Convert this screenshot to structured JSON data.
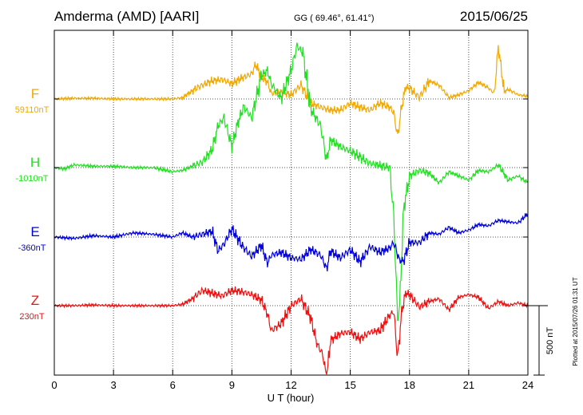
{
  "header": {
    "station": "Amderma (AMD)  [AARI]",
    "coords": "GG ( 69.46°,  61.41°)",
    "date": "2015/06/25"
  },
  "footer": {
    "plotted": "Plotted at 2015/07/26 01:31  UT"
  },
  "scale_bar_label": "500 nT",
  "chart_data": {
    "type": "line",
    "xlabel": "U T (hour)",
    "xlim": [
      0,
      24
    ],
    "xticks": [
      "0",
      "3",
      "6",
      "9",
      "12",
      "15",
      "18",
      "21",
      "24"
    ],
    "scale_bar_nT": 500,
    "grid": true,
    "series": [
      {
        "name": "F",
        "baseline_label": "59110nT",
        "color": "#f2a900",
        "x": [
          0,
          1,
          2,
          3,
          4,
          5,
          6,
          6.5,
          7,
          7.5,
          8,
          8.5,
          9,
          9.5,
          10,
          10.2,
          10.5,
          10.8,
          11,
          11.5,
          12,
          12.5,
          13,
          13.5,
          14,
          14.5,
          15,
          15.5,
          16,
          16.5,
          17,
          17.2,
          17.4,
          17.6,
          17.8,
          18,
          18.5,
          19,
          19.5,
          20,
          20.5,
          21,
          21.5,
          22,
          22.3,
          22.5,
          22.8,
          23,
          23.5,
          24
        ],
        "y": [
          0,
          5,
          5,
          0,
          0,
          0,
          0,
          10,
          60,
          100,
          130,
          140,
          110,
          150,
          180,
          250,
          160,
          120,
          40,
          50,
          30,
          100,
          -30,
          -60,
          -80,
          -80,
          -30,
          -60,
          -80,
          -30,
          -60,
          -100,
          -270,
          -60,
          80,
          80,
          10,
          130,
          100,
          10,
          30,
          60,
          120,
          80,
          40,
          380,
          50,
          70,
          30,
          20
        ]
      },
      {
        "name": "H",
        "baseline_label": "-1010nT",
        "color": "#22e022",
        "x": [
          0,
          0.5,
          1,
          2,
          3,
          4,
          5,
          6,
          6.5,
          7,
          7.5,
          8,
          8.3,
          8.6,
          9,
          9.3,
          9.6,
          10,
          10.5,
          10.8,
          11,
          11.5,
          12,
          12.3,
          12.6,
          13,
          13.5,
          13.8,
          14,
          14.5,
          15,
          16,
          17,
          17.2,
          17.4,
          17.5,
          17.7,
          18,
          18.5,
          19,
          19.5,
          20,
          20.5,
          21,
          21.5,
          22,
          22.5,
          23,
          23.5,
          24
        ],
        "y": [
          0,
          -10,
          20,
          10,
          10,
          0,
          0,
          -30,
          -20,
          10,
          40,
          130,
          300,
          360,
          150,
          320,
          440,
          360,
          660,
          700,
          600,
          500,
          700,
          880,
          820,
          420,
          300,
          50,
          200,
          150,
          120,
          30,
          0,
          -350,
          -1100,
          -1000,
          -300,
          -60,
          -20,
          -40,
          -110,
          -30,
          -60,
          -90,
          -20,
          -30,
          20,
          -90,
          -60,
          -110
        ]
      },
      {
        "name": "E",
        "baseline_label": "-360nT",
        "color": "#0000e0",
        "x": [
          0,
          1,
          2,
          3,
          4,
          5,
          6,
          6.5,
          7,
          7.5,
          8,
          8.3,
          8.6,
          9,
          9.5,
          10,
          10.5,
          10.8,
          11,
          11.5,
          12,
          12.5,
          13,
          13.5,
          13.8,
          14,
          14.5,
          15,
          15.5,
          16,
          16.5,
          17,
          17.2,
          17.5,
          17.7,
          18,
          18.5,
          19,
          19.5,
          20,
          20.5,
          21,
          21.5,
          22,
          22.5,
          23,
          23.5,
          24
        ],
        "y": [
          0,
          -10,
          10,
          0,
          30,
          20,
          0,
          30,
          0,
          20,
          40,
          -100,
          -50,
          60,
          -60,
          -140,
          -60,
          -190,
          -130,
          -110,
          -150,
          -160,
          -90,
          -130,
          -230,
          -100,
          -150,
          -90,
          -180,
          -70,
          -110,
          -80,
          -40,
          -170,
          -170,
          -40,
          -40,
          30,
          20,
          70,
          30,
          50,
          90,
          80,
          120,
          110,
          100,
          170
        ]
      },
      {
        "name": "Z",
        "baseline_label": "230nT",
        "color": "#ee1111",
        "x": [
          0,
          1,
          2,
          3,
          4,
          5,
          6,
          6.5,
          7,
          7.5,
          8,
          8.5,
          9,
          9.5,
          10,
          10.5,
          10.8,
          11,
          11.5,
          12,
          12.5,
          13,
          13.3,
          13.6,
          13.8,
          14,
          14.5,
          15,
          15.5,
          16,
          16.5,
          17,
          17.2,
          17.4,
          17.6,
          17.8,
          18,
          18.5,
          19,
          19.5,
          20,
          20.5,
          21,
          21.5,
          22,
          22.5,
          23,
          23.5,
          24
        ],
        "y": [
          0,
          0,
          5,
          0,
          0,
          0,
          0,
          10,
          50,
          110,
          90,
          70,
          110,
          100,
          80,
          40,
          -60,
          -180,
          -130,
          0,
          50,
          -90,
          -270,
          -350,
          -520,
          -250,
          -200,
          -190,
          -240,
          -190,
          -180,
          -70,
          -40,
          -380,
          -50,
          90,
          80,
          -10,
          30,
          50,
          -30,
          60,
          80,
          60,
          -20,
          30,
          0,
          20,
          0
        ]
      }
    ]
  }
}
